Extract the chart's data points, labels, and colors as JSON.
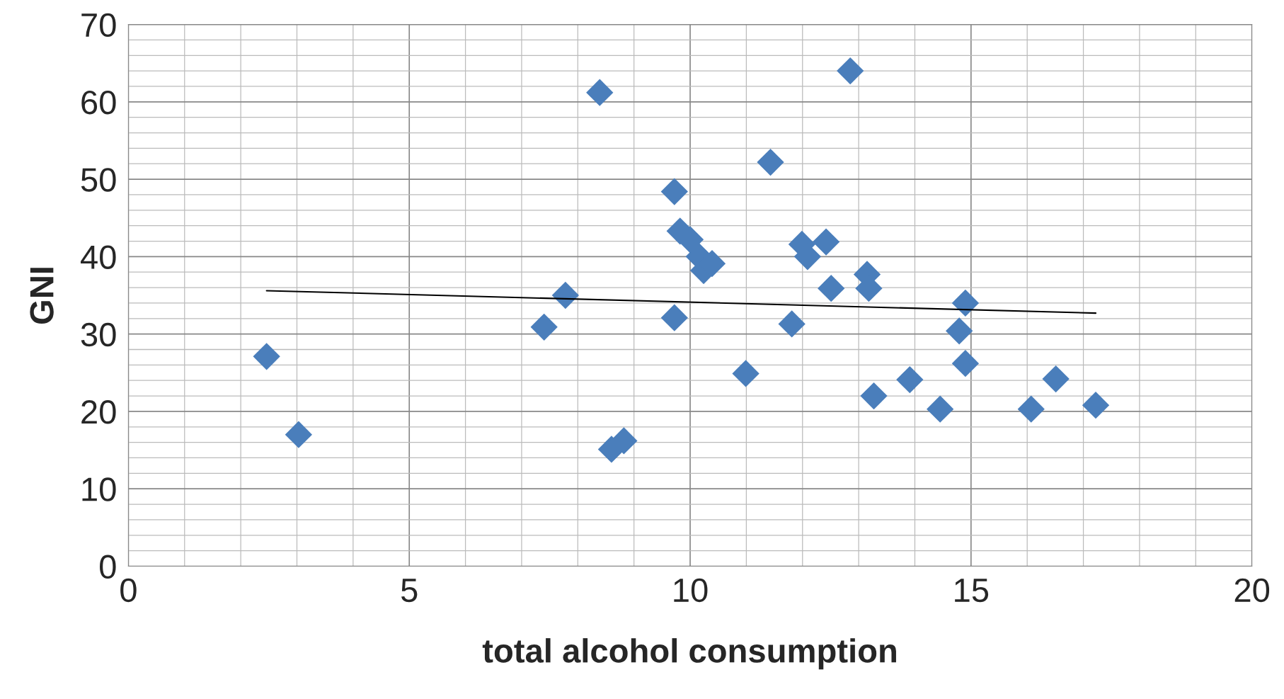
{
  "chart_data": {
    "type": "scatter",
    "xlabel": "total alcohol consumption",
    "ylabel": "GNI",
    "xlim": [
      0,
      20
    ],
    "ylim": [
      0,
      70
    ],
    "xticks": [
      0,
      5,
      10,
      15,
      20
    ],
    "yticks": [
      0,
      10,
      20,
      30,
      40,
      50,
      60,
      70
    ],
    "grid": true,
    "series": [
      {
        "color": "#4a7ebb",
        "marker": "diamond",
        "x": [
          2.46,
          3.03,
          7.4,
          7.78,
          8.39,
          8.6,
          8.82,
          9.72,
          9.72,
          9.82,
          10.0,
          10.16,
          10.24,
          10.39,
          10.99,
          11.43,
          11.81,
          11.99,
          12.09,
          12.42,
          12.51,
          12.85,
          13.15,
          13.18,
          13.27,
          13.91,
          14.45,
          14.79,
          14.9,
          14.9,
          16.07,
          16.51,
          17.22
        ],
        "values": [
          27.1,
          17.0,
          30.9,
          35.0,
          61.2,
          15.1,
          16.2,
          48.4,
          32.1,
          43.3,
          42.2,
          40.0,
          38.2,
          39.1,
          24.9,
          52.2,
          31.3,
          41.6,
          40.0,
          41.9,
          35.9,
          64.0,
          37.7,
          35.9,
          22.0,
          24.1,
          20.3,
          30.4,
          34.0,
          26.2,
          20.3,
          24.2,
          20.8
        ]
      },
      {
        "type": "line",
        "color": "#000000",
        "marker": "none",
        "line_style": "solid",
        "x": [
          2.46,
          17.22
        ],
        "values": [
          35.6,
          32.7
        ]
      }
    ]
  }
}
